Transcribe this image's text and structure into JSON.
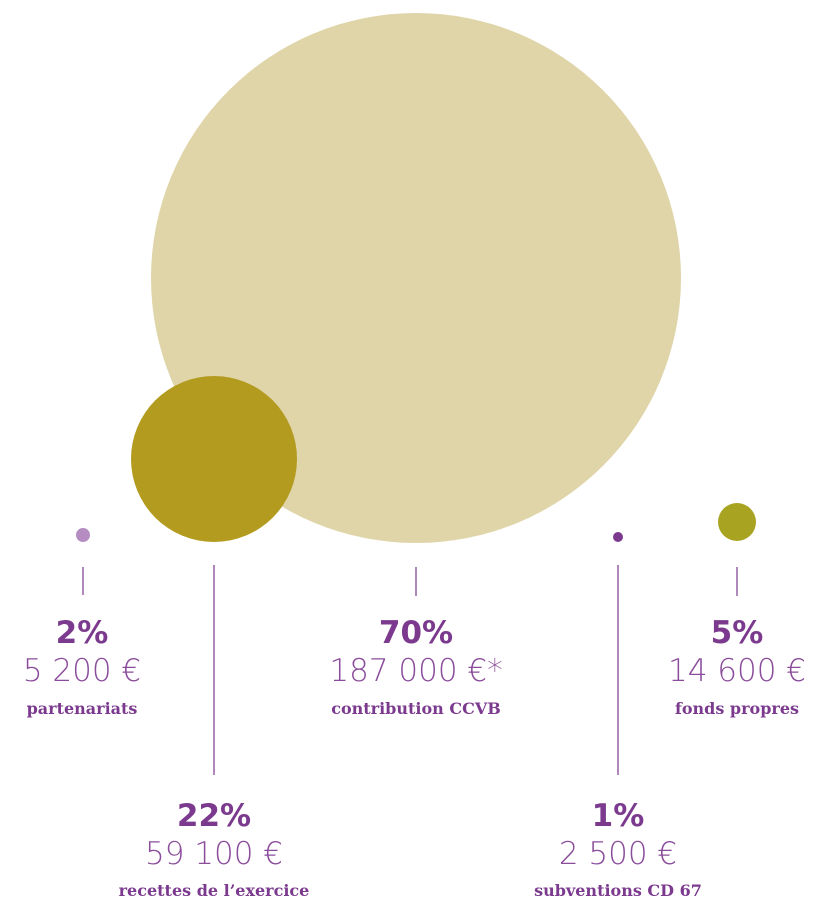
{
  "chart_data": {
    "type": "bubble",
    "title": "",
    "items": [
      {
        "key": "contribution",
        "percent": "70%",
        "value": 187000,
        "amount": "187 000 €*",
        "label": "contribution CCVB",
        "color": "#e0d4a9"
      },
      {
        "key": "recettes",
        "percent": "22%",
        "value": 59100,
        "amount": "59 100 €",
        "label": "recettes de l’exercice",
        "color": "#b39b20"
      },
      {
        "key": "fonds",
        "percent": "5%",
        "value": 14600,
        "amount": "14 600 €",
        "label": "fonds propres",
        "color": "#a9a322"
      },
      {
        "key": "partenariats",
        "percent": "2%",
        "value": 5200,
        "amount": "5 200 €",
        "label": "partenariats",
        "color": "#b68dc3"
      },
      {
        "key": "subventions",
        "percent": "1%",
        "value": 2500,
        "amount": "2 500 €",
        "label": "subventions CD 67",
        "color": "#7b3a8e"
      }
    ]
  }
}
